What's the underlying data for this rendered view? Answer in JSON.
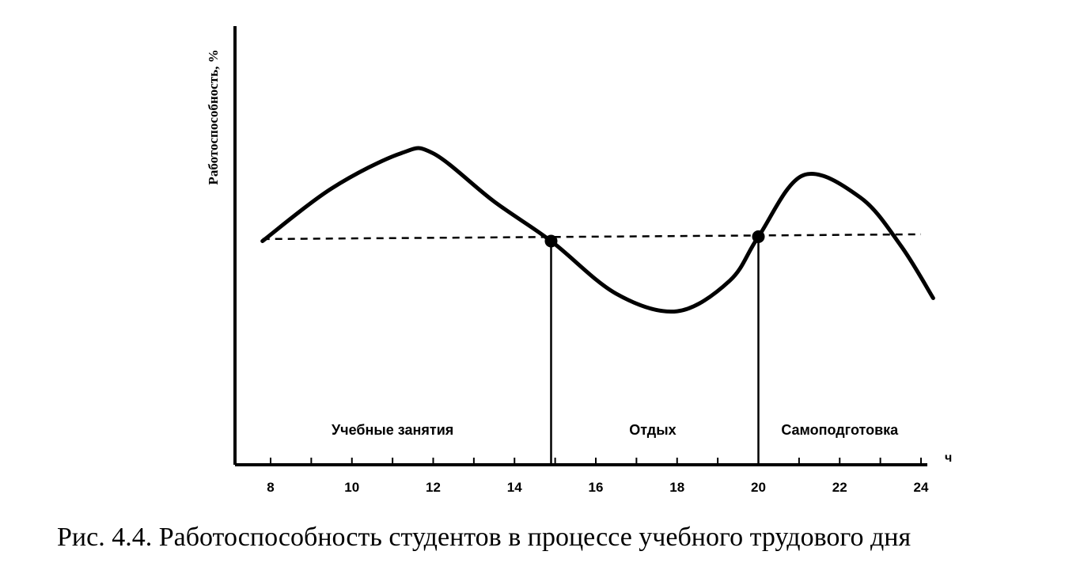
{
  "caption": "Рис. 4.4. Работоспособность студентов в процессе учебного трудового дня",
  "chart_data": {
    "type": "line",
    "ylabel": "Работоспособность, %",
    "xunit": "ч",
    "xlim": [
      7.2,
      24.5
    ],
    "ylim": [
      0,
      100
    ],
    "x_ticks": [
      8,
      10,
      12,
      14,
      16,
      18,
      20,
      22,
      24
    ],
    "minor_tick_step": 1,
    "line_color": "#000000",
    "series": [
      {
        "points": [
          [
            7.8,
            51
          ],
          [
            9.5,
            63
          ],
          [
            11.2,
            71
          ],
          [
            12.0,
            71
          ],
          [
            13.5,
            60
          ],
          [
            14.9,
            51
          ],
          [
            16.5,
            39
          ],
          [
            18.0,
            35
          ],
          [
            19.3,
            42
          ],
          [
            20.0,
            52
          ],
          [
            21.1,
            66
          ],
          [
            22.5,
            61
          ],
          [
            23.5,
            50
          ],
          [
            24.3,
            38
          ]
        ]
      }
    ],
    "reference_line": {
      "y": 52,
      "style": "dashed",
      "x_from": 7.8,
      "x_to": 24.0
    },
    "markers": [
      {
        "x": 14.9,
        "y": 51
      },
      {
        "x": 20.0,
        "y": 52
      }
    ],
    "dividers": [
      14.9,
      20.0
    ],
    "regions": [
      {
        "label": "Учебные занятия",
        "x_center": 11.0
      },
      {
        "label": "Отдых",
        "x_center": 17.4
      },
      {
        "label": "Самоподготовка",
        "x_center": 22.0
      }
    ]
  }
}
